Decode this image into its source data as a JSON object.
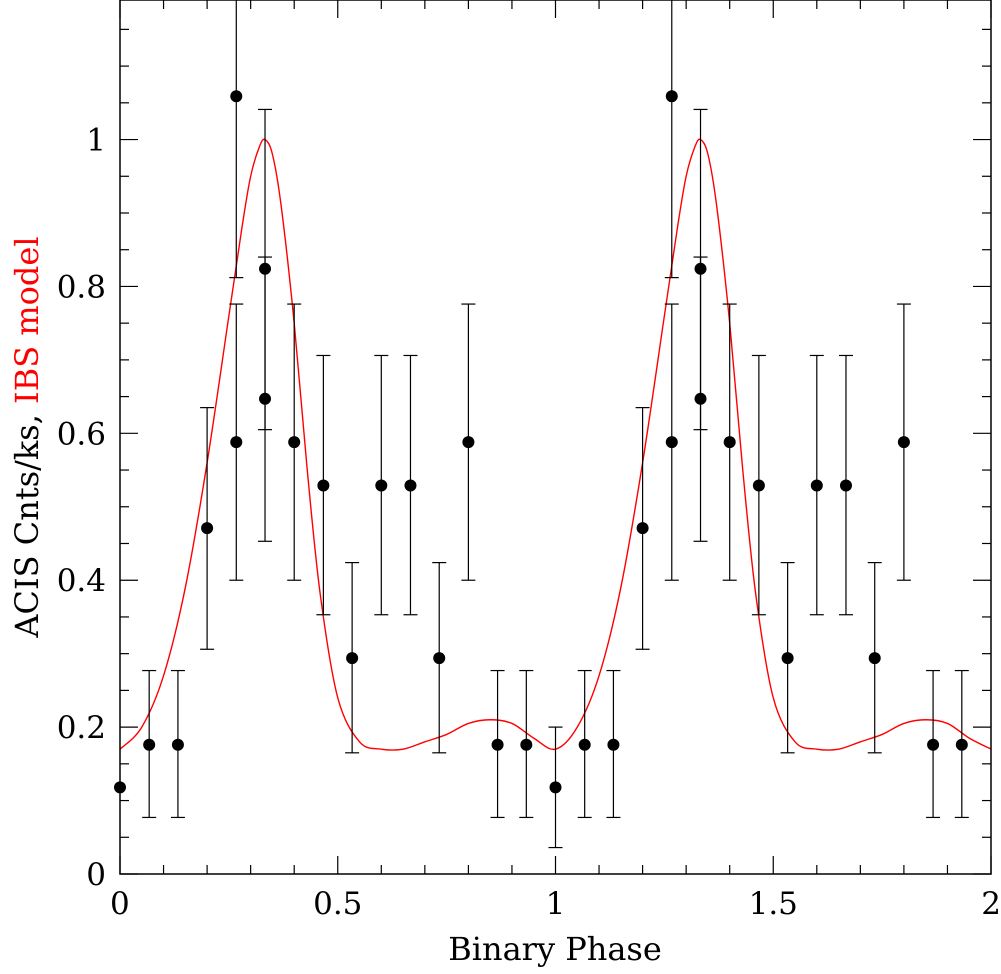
{
  "chart_data": {
    "type": "scatter",
    "title": "",
    "xlabel": "Binary Phase",
    "ylabel": {
      "prefix": "ACIS Cnts/ks, ",
      "highlight": "IBS model"
    },
    "xlim": [
      0,
      2
    ],
    "ylim": [
      0,
      1.19
    ],
    "grid": false,
    "legend": "none",
    "x_ticks": [
      0,
      0.5,
      1,
      1.5,
      2
    ],
    "x_tick_labels": [
      "0",
      "0.5",
      "1",
      "1.5",
      "2"
    ],
    "y_ticks": [
      0,
      0.2,
      0.4,
      0.6,
      0.8,
      1
    ],
    "y_tick_labels": [
      "0",
      "0.2",
      "0.4",
      "0.6",
      "0.8",
      "1"
    ],
    "colors": {
      "axes": "#000000",
      "data": "#000000",
      "model": "#ff0000"
    },
    "series": [
      {
        "name": "ACIS counts",
        "kind": "points-with-errorbars",
        "points": [
          {
            "x": 0.0,
            "y": 0.118,
            "err_low": 0.118,
            "err_high": 0.118
          },
          {
            "x": 0.067,
            "y": 0.176,
            "err_low": 0.077,
            "err_high": 0.277
          },
          {
            "x": 0.133,
            "y": 0.176,
            "err_low": 0.077,
            "err_high": 0.277
          },
          {
            "x": 0.2,
            "y": 0.471,
            "err_low": 0.306,
            "err_high": 0.635
          },
          {
            "x": 0.267,
            "y": 0.588,
            "err_low": 0.4,
            "err_high": 0.776
          },
          {
            "x": 0.267,
            "y": 1.059,
            "err_low": 0.812,
            "err_high": 1.19
          },
          {
            "x": 0.333,
            "y": 0.824,
            "err_low": 0.605,
            "err_high": 1.041
          },
          {
            "x": 0.333,
            "y": 0.647,
            "err_low": 0.453,
            "err_high": 0.84
          },
          {
            "x": 0.4,
            "y": 0.588,
            "err_low": 0.4,
            "err_high": 0.776
          },
          {
            "x": 0.467,
            "y": 0.529,
            "err_low": 0.353,
            "err_high": 0.706
          },
          {
            "x": 0.533,
            "y": 0.294,
            "err_low": 0.165,
            "err_high": 0.424
          },
          {
            "x": 0.6,
            "y": 0.529,
            "err_low": 0.353,
            "err_high": 0.706
          },
          {
            "x": 0.667,
            "y": 0.529,
            "err_low": 0.353,
            "err_high": 0.706
          },
          {
            "x": 0.733,
            "y": 0.294,
            "err_low": 0.165,
            "err_high": 0.424
          },
          {
            "x": 0.8,
            "y": 0.588,
            "err_low": 0.4,
            "err_high": 0.776
          },
          {
            "x": 0.867,
            "y": 0.176,
            "err_low": 0.077,
            "err_high": 0.277
          },
          {
            "x": 0.933,
            "y": 0.176,
            "err_low": 0.077,
            "err_high": 0.277
          },
          {
            "x": 1.0,
            "y": 0.118,
            "err_low": 0.036,
            "err_high": 0.2
          },
          {
            "x": 1.067,
            "y": 0.176,
            "err_low": 0.077,
            "err_high": 0.277
          },
          {
            "x": 1.133,
            "y": 0.176,
            "err_low": 0.077,
            "err_high": 0.277
          },
          {
            "x": 1.2,
            "y": 0.471,
            "err_low": 0.306,
            "err_high": 0.635
          },
          {
            "x": 1.267,
            "y": 0.588,
            "err_low": 0.4,
            "err_high": 0.776
          },
          {
            "x": 1.267,
            "y": 1.059,
            "err_low": 0.812,
            "err_high": 1.19
          },
          {
            "x": 1.333,
            "y": 0.824,
            "err_low": 0.605,
            "err_high": 1.041
          },
          {
            "x": 1.333,
            "y": 0.647,
            "err_low": 0.453,
            "err_high": 0.84
          },
          {
            "x": 1.4,
            "y": 0.588,
            "err_low": 0.4,
            "err_high": 0.776
          },
          {
            "x": 1.467,
            "y": 0.529,
            "err_low": 0.353,
            "err_high": 0.706
          },
          {
            "x": 1.533,
            "y": 0.294,
            "err_low": 0.165,
            "err_high": 0.424
          },
          {
            "x": 1.6,
            "y": 0.529,
            "err_low": 0.353,
            "err_high": 0.706
          },
          {
            "x": 1.667,
            "y": 0.529,
            "err_low": 0.353,
            "err_high": 0.706
          },
          {
            "x": 1.733,
            "y": 0.294,
            "err_low": 0.165,
            "err_high": 0.424
          },
          {
            "x": 1.8,
            "y": 0.588,
            "err_low": 0.4,
            "err_high": 0.776
          },
          {
            "x": 1.867,
            "y": 0.176,
            "err_low": 0.077,
            "err_high": 0.277
          },
          {
            "x": 1.933,
            "y": 0.176,
            "err_low": 0.077,
            "err_high": 0.277
          }
        ]
      },
      {
        "name": "IBS model",
        "kind": "line",
        "x": [
          0.0,
          0.05,
          0.1,
          0.15,
          0.2,
          0.25,
          0.28,
          0.3,
          0.32,
          0.333,
          0.35,
          0.37,
          0.4,
          0.43,
          0.46,
          0.5,
          0.55,
          0.6,
          0.65,
          0.7,
          0.75,
          0.8,
          0.85,
          0.9,
          0.95,
          1.0,
          1.05,
          1.1,
          1.15,
          1.2,
          1.25,
          1.28,
          1.3,
          1.32,
          1.333,
          1.35,
          1.37,
          1.4,
          1.43,
          1.46,
          1.5,
          1.55,
          1.6,
          1.65,
          1.7,
          1.75,
          1.8,
          1.85,
          1.9,
          1.95,
          2.0
        ],
        "y": [
          0.17,
          0.2,
          0.27,
          0.39,
          0.56,
          0.76,
          0.88,
          0.95,
          0.99,
          1.0,
          0.98,
          0.91,
          0.75,
          0.55,
          0.38,
          0.24,
          0.18,
          0.17,
          0.17,
          0.18,
          0.19,
          0.205,
          0.21,
          0.205,
          0.185,
          0.17,
          0.2,
          0.27,
          0.39,
          0.56,
          0.76,
          0.88,
          0.95,
          0.99,
          1.0,
          0.98,
          0.91,
          0.75,
          0.55,
          0.38,
          0.24,
          0.18,
          0.17,
          0.17,
          0.18,
          0.19,
          0.205,
          0.21,
          0.205,
          0.185,
          0.17
        ]
      }
    ]
  }
}
